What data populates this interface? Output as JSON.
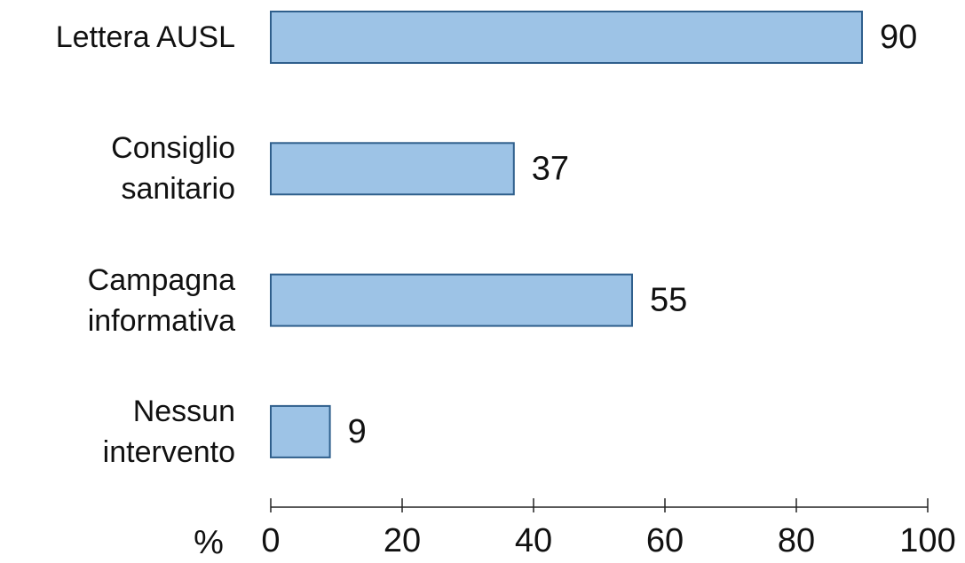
{
  "chart_data": {
    "type": "hbar",
    "x_label": "%",
    "categories": [
      "Lettera AUSL",
      "Consiglio sanitario",
      "Campagna informativa",
      "Nessun intervento"
    ],
    "values": [
      90,
      37,
      55,
      9
    ],
    "color": "#9dc3e6",
    "edge_color": "#2f5f8c",
    "xlim": [
      0,
      100
    ],
    "xticks": [
      0,
      20,
      40,
      60,
      80,
      100
    ],
    "grid": false
  }
}
